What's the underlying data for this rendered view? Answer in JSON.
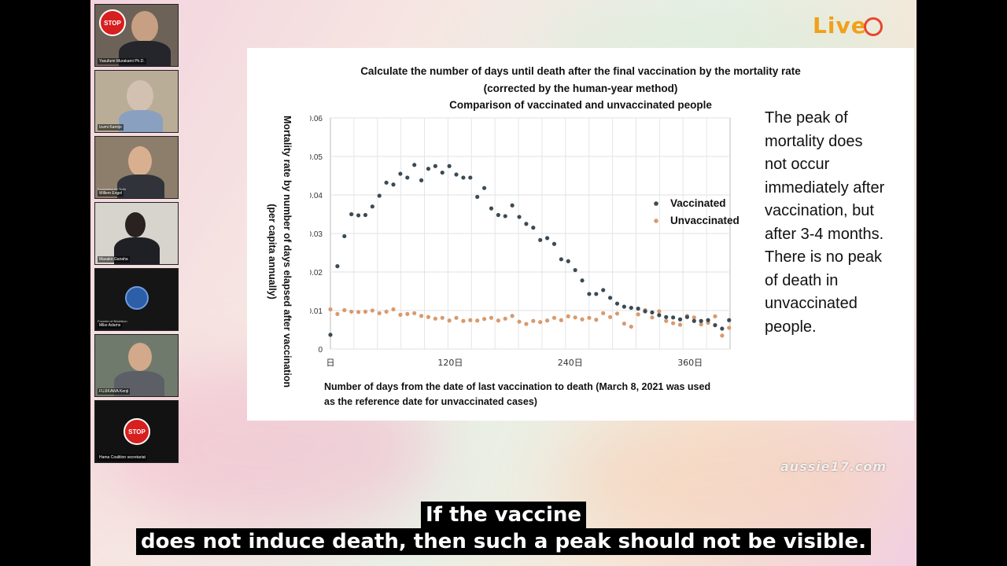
{
  "participants": [
    {
      "name": "Yasufumi Murakami Ph.D.",
      "subtitle": "",
      "badge": "STOP"
    },
    {
      "name": "Izumi Kamijo",
      "subtitle": "",
      "badge": ""
    },
    {
      "name": "Willem Engel",
      "subtitle": "Foundation for Truth",
      "badge": ""
    },
    {
      "name": "Masako Ganaha",
      "subtitle": "",
      "badge": ""
    },
    {
      "name": "Mike Adams",
      "subtitle": "Founder of Brighteon",
      "badge": ""
    },
    {
      "name": "FUJIKAWA Kenji",
      "subtitle": "",
      "badge": ""
    },
    {
      "name": "Hama Coalition secretariat",
      "subtitle": "",
      "badge": "STOP"
    }
  ],
  "logo": {
    "text": "Live"
  },
  "slide": {
    "title_lines": [
      "Calculate the number of days until death after the final vaccination by the mortality rate",
      "(corrected by the human-year method)",
      "Comparison of vaccinated and unvaccinated people"
    ],
    "note_lines": [
      "The peak of",
      "mortality does",
      "not occur",
      "immediately after",
      "vaccination, but",
      "after 3-4 months.",
      "There is no peak",
      "of death in",
      "unvaccinated",
      "people."
    ]
  },
  "chart_data": {
    "type": "scatter",
    "title": "Calculate the number of days until death after the final vaccination by the mortality rate (corrected by the human-year method) Comparison of vaccinated and unvaccinated people",
    "xlabel_lines": [
      "Number of days from the date of last vaccination to death (March 8, 2021 was used",
      "as the reference date for unvaccinated cases)"
    ],
    "ylabel_lines": [
      "Mortality rate by number of days elapsed after vaccination",
      "(per capita annually)"
    ],
    "xlim": [
      0,
      400
    ],
    "ylim": [
      0,
      0.06
    ],
    "x_ticks": [
      {
        "value": 0,
        "label": "日"
      },
      {
        "value": 120,
        "label": "120日"
      },
      {
        "value": 240,
        "label": "240日"
      },
      {
        "value": 360,
        "label": "360日"
      }
    ],
    "y_ticks": [
      {
        "value": 0,
        "label": "0"
      },
      {
        "value": 0.01,
        "label": "0.01"
      },
      {
        "value": 0.02,
        "label": "0.02"
      },
      {
        "value": 0.03,
        "label": "0.03"
      },
      {
        "value": 0.04,
        "label": "0.04"
      },
      {
        "value": 0.05,
        "label": "0.05"
      },
      {
        "value": 0.06,
        "label": "0.06"
      }
    ],
    "grid": true,
    "legend_position": "right",
    "series": [
      {
        "name": "Vaccinated",
        "color": "#3b4b55",
        "points": [
          [
            0,
            0.0037
          ],
          [
            7,
            0.0215
          ],
          [
            14,
            0.0293
          ],
          [
            21,
            0.035
          ],
          [
            28,
            0.0347
          ],
          [
            35,
            0.0348
          ],
          [
            42,
            0.037
          ],
          [
            49,
            0.0398
          ],
          [
            56,
            0.0432
          ],
          [
            63,
            0.0427
          ],
          [
            70,
            0.0455
          ],
          [
            77,
            0.0445
          ],
          [
            84,
            0.0478
          ],
          [
            91,
            0.0438
          ],
          [
            98,
            0.0468
          ],
          [
            105,
            0.0475
          ],
          [
            112,
            0.0458
          ],
          [
            119,
            0.0475
          ],
          [
            126,
            0.0453
          ],
          [
            133,
            0.0445
          ],
          [
            140,
            0.0445
          ],
          [
            147,
            0.0395
          ],
          [
            154,
            0.0418
          ],
          [
            161,
            0.0365
          ],
          [
            168,
            0.0348
          ],
          [
            175,
            0.0345
          ],
          [
            182,
            0.0373
          ],
          [
            189,
            0.0343
          ],
          [
            196,
            0.0325
          ],
          [
            203,
            0.0315
          ],
          [
            210,
            0.0283
          ],
          [
            217,
            0.0288
          ],
          [
            224,
            0.0273
          ],
          [
            231,
            0.0233
          ],
          [
            238,
            0.0228
          ],
          [
            245,
            0.0205
          ],
          [
            252,
            0.0178
          ],
          [
            259,
            0.0143
          ],
          [
            266,
            0.0143
          ],
          [
            273,
            0.0153
          ],
          [
            280,
            0.0133
          ],
          [
            287,
            0.0118
          ],
          [
            294,
            0.011
          ],
          [
            301,
            0.0107
          ],
          [
            308,
            0.0105
          ],
          [
            315,
            0.0098
          ],
          [
            322,
            0.0095
          ],
          [
            329,
            0.0088
          ],
          [
            336,
            0.0083
          ],
          [
            343,
            0.0082
          ],
          [
            350,
            0.0077
          ],
          [
            357,
            0.0083
          ],
          [
            364,
            0.0073
          ],
          [
            371,
            0.0073
          ],
          [
            378,
            0.0075
          ],
          [
            385,
            0.0062
          ],
          [
            392,
            0.0053
          ],
          [
            399,
            0.0075
          ]
        ]
      },
      {
        "name": "Unvaccinated",
        "color": "#d89a6e",
        "points": [
          [
            0,
            0.0103
          ],
          [
            7,
            0.0091
          ],
          [
            14,
            0.0101
          ],
          [
            21,
            0.0097
          ],
          [
            28,
            0.0096
          ],
          [
            35,
            0.0097
          ],
          [
            42,
            0.01
          ],
          [
            49,
            0.0093
          ],
          [
            56,
            0.0097
          ],
          [
            63,
            0.0103
          ],
          [
            70,
            0.0089
          ],
          [
            77,
            0.0091
          ],
          [
            84,
            0.0093
          ],
          [
            91,
            0.0086
          ],
          [
            98,
            0.0083
          ],
          [
            105,
            0.0079
          ],
          [
            112,
            0.0081
          ],
          [
            119,
            0.0074
          ],
          [
            126,
            0.0081
          ],
          [
            133,
            0.0073
          ],
          [
            140,
            0.0075
          ],
          [
            147,
            0.0074
          ],
          [
            154,
            0.0078
          ],
          [
            161,
            0.0081
          ],
          [
            168,
            0.0074
          ],
          [
            175,
            0.0079
          ],
          [
            182,
            0.0086
          ],
          [
            189,
            0.0071
          ],
          [
            196,
            0.0065
          ],
          [
            203,
            0.0073
          ],
          [
            210,
            0.007
          ],
          [
            217,
            0.0074
          ],
          [
            224,
            0.0081
          ],
          [
            231,
            0.0075
          ],
          [
            238,
            0.0085
          ],
          [
            245,
            0.0082
          ],
          [
            252,
            0.0077
          ],
          [
            259,
            0.0081
          ],
          [
            266,
            0.0076
          ],
          [
            273,
            0.0093
          ],
          [
            280,
            0.0083
          ],
          [
            287,
            0.0092
          ],
          [
            294,
            0.0066
          ],
          [
            301,
            0.0058
          ],
          [
            308,
            0.009
          ],
          [
            315,
            0.0101
          ],
          [
            322,
            0.0082
          ],
          [
            329,
            0.0098
          ],
          [
            336,
            0.0073
          ],
          [
            343,
            0.0067
          ],
          [
            350,
            0.0063
          ],
          [
            357,
            0.0086
          ],
          [
            364,
            0.0082
          ],
          [
            371,
            0.0064
          ],
          [
            378,
            0.0068
          ],
          [
            385,
            0.0085
          ],
          [
            392,
            0.0035
          ],
          [
            399,
            0.0055
          ]
        ]
      }
    ]
  },
  "watermark": "aussie17.com",
  "subtitles": [
    "If the vaccine",
    "does not induce death, then such a peak should not be visible."
  ]
}
